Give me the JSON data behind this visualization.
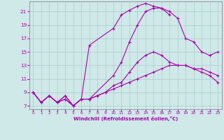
{
  "bg_color": "#cfe8e8",
  "line_color": "#aa00aa",
  "grid_color": "#aacccc",
  "xlabel": "Windchill (Refroidissement éolien,°C)",
  "ylabel_ticks": [
    7,
    9,
    11,
    13,
    15,
    17,
    19,
    21
  ],
  "xlim": [
    -0.5,
    23.5
  ],
  "ylim": [
    6.5,
    22.5
  ],
  "xticks": [
    0,
    1,
    2,
    3,
    4,
    5,
    6,
    7,
    8,
    9,
    10,
    11,
    12,
    13,
    14,
    15,
    16,
    17,
    18,
    19,
    20,
    21,
    22,
    23
  ],
  "line1_x": [
    0,
    1,
    2,
    3,
    4,
    5,
    6,
    7,
    8,
    9,
    10,
    11,
    12,
    13,
    14,
    15,
    16,
    17,
    18,
    19,
    20,
    21,
    22,
    23
  ],
  "line1_y": [
    9,
    7.5,
    8.5,
    7.5,
    8.5,
    7.0,
    8.0,
    8.0,
    8.5,
    9.0,
    9.5,
    10.0,
    10.5,
    11.0,
    11.5,
    12.0,
    12.5,
    13.0,
    13.0,
    13.0,
    12.5,
    12.0,
    11.5,
    10.5
  ],
  "line2_x": [
    0,
    1,
    2,
    3,
    4,
    5,
    6,
    7,
    8,
    9,
    10,
    11,
    12,
    13,
    14,
    15,
    16,
    17,
    18,
    19,
    20,
    21,
    22,
    23
  ],
  "line2_y": [
    9,
    7.5,
    8.5,
    7.5,
    8.5,
    7.0,
    8.0,
    8.0,
    8.5,
    9.0,
    10.0,
    10.5,
    12.0,
    13.5,
    14.5,
    15.0,
    14.5,
    13.5,
    13.0,
    13.0,
    12.5,
    12.5,
    12.0,
    11.5
  ],
  "line3_x": [
    0,
    1,
    2,
    3,
    4,
    5,
    6,
    7,
    10,
    11,
    12,
    13,
    14,
    15,
    16,
    17,
    18,
    19,
    20,
    21,
    22,
    23
  ],
  "line3_y": [
    9,
    7.5,
    8.5,
    7.5,
    8.0,
    7.0,
    8.0,
    8.0,
    11.5,
    13.5,
    16.5,
    19.0,
    21.0,
    21.5,
    21.5,
    21.0,
    20.0,
    17.0,
    16.5,
    15.0,
    14.5,
    15.0
  ],
  "line4_x": [
    0,
    1,
    2,
    3,
    4,
    5,
    6,
    7,
    10,
    11,
    12,
    13,
    14,
    15,
    16,
    17
  ],
  "line4_y": [
    9,
    7.5,
    8.5,
    7.5,
    8.0,
    7.0,
    8.0,
    16.0,
    18.5,
    20.5,
    21.2,
    21.8,
    22.2,
    21.8,
    21.5,
    20.5
  ]
}
